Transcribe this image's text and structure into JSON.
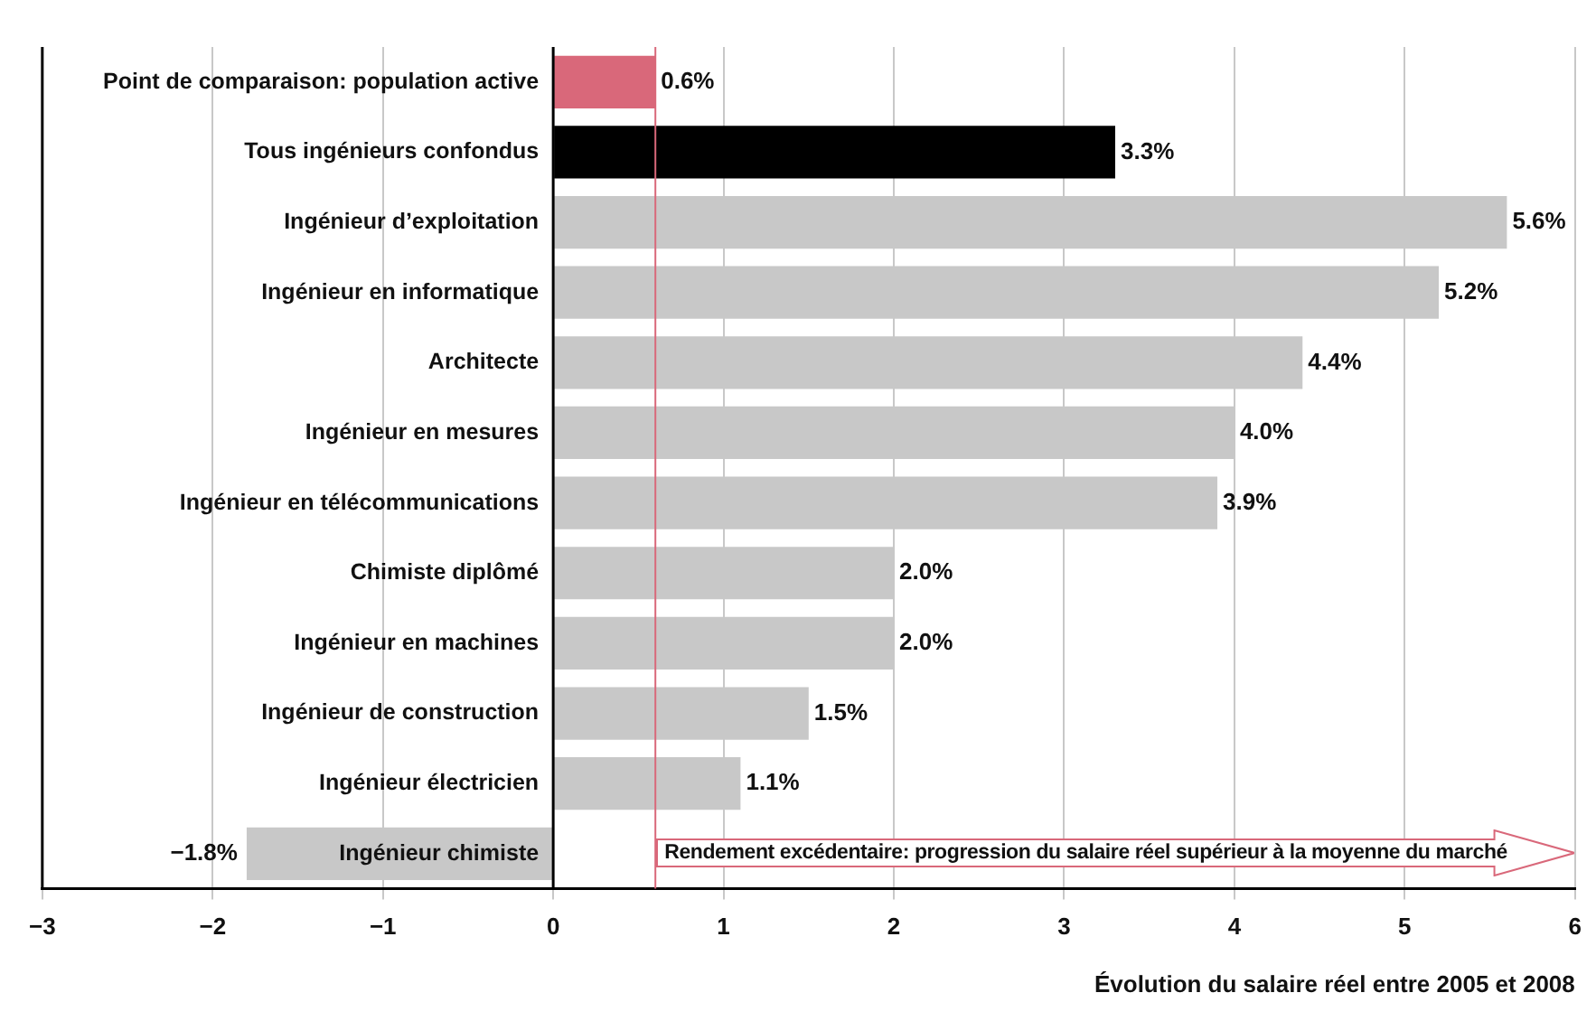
{
  "chart_data": {
    "type": "bar",
    "orientation": "horizontal",
    "xlabel": "Évolution du salaire réel entre 2005 et 2008",
    "categories": [
      "Point de comparaison: population active",
      "Tous ingénieurs confondus",
      "Ingénieur d’exploitation",
      "Ingénieur en informatique",
      "Architecte",
      "Ingénieur en mesures",
      "Ingénieur en télécommunications",
      "Chimiste diplômé",
      "Ingénieur en machines",
      "Ingénieur de construction",
      "Ingénieur électricien",
      "Ingénieur chimiste"
    ],
    "values": [
      0.6,
      3.3,
      5.6,
      5.2,
      4.4,
      4.0,
      3.9,
      2.0,
      2.0,
      1.5,
      1.1,
      -1.8
    ],
    "colors": [
      "#d9687a",
      "#000000",
      "#c8c8c8",
      "#c8c8c8",
      "#c8c8c8",
      "#c8c8c8",
      "#c8c8c8",
      "#c8c8c8",
      "#c8c8c8",
      "#c8c8c8",
      "#c8c8c8",
      "#c8c8c8"
    ],
    "value_labels": [
      "0.6%",
      "3.3%",
      "5.6%",
      "5.2%",
      "4.4%",
      "4.0%",
      "3.9%",
      "2.0%",
      "2.0%",
      "1.5%",
      "1.1%",
      "−1.8%"
    ],
    "xlim": [
      -3,
      6
    ],
    "xticks": [
      {
        "value": -3,
        "label": "−3"
      },
      {
        "value": -2,
        "label": "−2"
      },
      {
        "value": -1,
        "label": "−1"
      },
      0,
      1,
      2,
      3,
      4,
      5,
      6
    ],
    "ref_lines": [
      {
        "axis": "x",
        "value": 0.6,
        "color": "#d9687a"
      }
    ],
    "annotations": [
      "Rendement excédentaire: progression du salaire réel supérieur à la moyenne du marché"
    ],
    "grid": "x",
    "legend": false
  }
}
